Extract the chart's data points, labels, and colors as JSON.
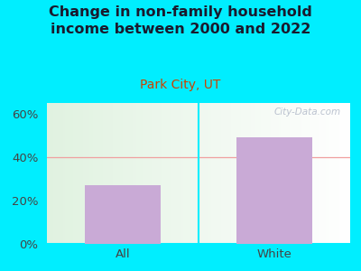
{
  "title": "Change in non-family household\nincome between 2000 and 2022",
  "subtitle": "Park City, UT",
  "categories": [
    "All",
    "White"
  ],
  "values": [
    27,
    49
  ],
  "bar_color": "#c9aad6",
  "title_color": "#1a1a2e",
  "subtitle_color": "#cc4400",
  "title_fontsize": 11.5,
  "subtitle_fontsize": 10,
  "tick_fontsize": 9.5,
  "ylim": [
    0,
    65
  ],
  "yticks": [
    0,
    20,
    40,
    60
  ],
  "yticklabels": [
    "0%",
    "20%",
    "40%",
    "60%"
  ],
  "bg_outer": "#00eeff",
  "watermark": "City-Data.com",
  "watermark_color": "#b0b8c8",
  "gridline_40_color": "#f0a0a0",
  "divider_color": "#00eeff"
}
